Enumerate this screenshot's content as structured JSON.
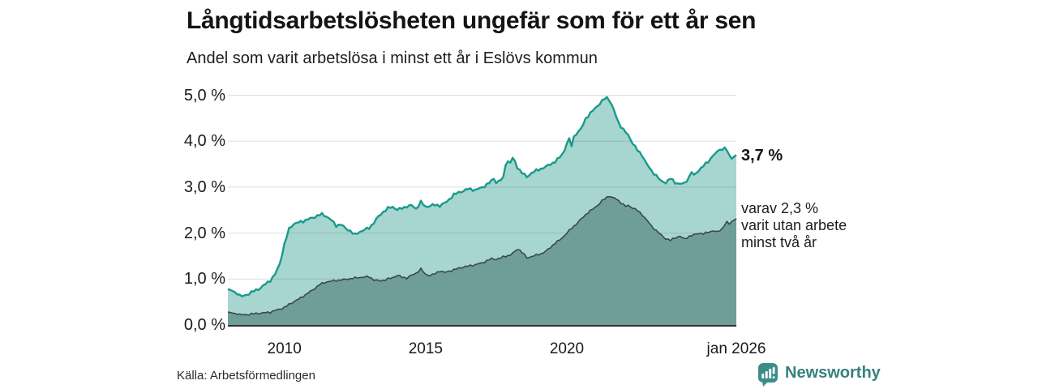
{
  "title": "Långtidsarbetslösheten ungefär som för ett år sen",
  "subtitle": "Andel som varit arbetslösa i minst ett år i Eslövs kommun",
  "source": "Källa: Arbetsförmedlingen",
  "logo": {
    "text": "Newsworthy",
    "icon": "newsworthy-speech-bubble-bar-chart-icon",
    "color": "#37817d",
    "icon_color": "#3a8d88"
  },
  "annotations": {
    "end_value_label": "3,7 %",
    "secondary": [
      "varav 2,3 %",
      "varit utan arbete",
      "minst två år"
    ]
  },
  "colors": {
    "primary_line": "#1a9a8b",
    "primary_fill": "#a7d5cf",
    "secondary_line": "#3a4948",
    "secondary_fill": "#6f9e99",
    "gridline": "rgba(70,75,85,0.18)",
    "axis": "#333333"
  },
  "chart_data": {
    "type": "area",
    "title": "Långtidsarbetslösheten ungefär som för ett år sen",
    "subtitle": "Andel som varit arbetslösa i minst ett år i Eslövs kommun",
    "xlabel": "",
    "ylabel": "",
    "x_range": [
      2008.0,
      2026.0
    ],
    "ylim": [
      0,
      5.3
    ],
    "grid": true,
    "legend_position": "right-edge-annotations",
    "y_ticks": [
      {
        "label": "0,0 %",
        "value": 0
      },
      {
        "label": "1,0 %",
        "value": 1
      },
      {
        "label": "2,0 %",
        "value": 2
      },
      {
        "label": "3,0 %",
        "value": 3
      },
      {
        "label": "4,0 %",
        "value": 4
      },
      {
        "label": "5,0 %",
        "value": 5
      }
    ],
    "x_ticks": [
      {
        "label": "2010",
        "value": 2010
      },
      {
        "label": "2015",
        "value": 2015
      },
      {
        "label": "2020",
        "value": 2020
      },
      {
        "label": "jan 2026",
        "value": 2026
      }
    ],
    "series": [
      {
        "name": "arbetslösa minst ett år",
        "end_value": 3.7,
        "end_label": "3,7 %",
        "points": [
          [
            2008.0,
            0.78
          ],
          [
            2008.17,
            0.74
          ],
          [
            2008.33,
            0.68
          ],
          [
            2008.5,
            0.62
          ],
          [
            2008.67,
            0.66
          ],
          [
            2008.83,
            0.71
          ],
          [
            2009.0,
            0.76
          ],
          [
            2009.17,
            0.81
          ],
          [
            2009.33,
            0.89
          ],
          [
            2009.5,
            0.97
          ],
          [
            2009.67,
            1.1
          ],
          [
            2009.83,
            1.32
          ],
          [
            2010.0,
            1.75
          ],
          [
            2010.17,
            2.1
          ],
          [
            2010.33,
            2.2
          ],
          [
            2010.5,
            2.23
          ],
          [
            2010.67,
            2.26
          ],
          [
            2010.83,
            2.3
          ],
          [
            2011.0,
            2.33
          ],
          [
            2011.17,
            2.38
          ],
          [
            2011.33,
            2.41
          ],
          [
            2011.5,
            2.36
          ],
          [
            2011.67,
            2.28
          ],
          [
            2011.83,
            2.16
          ],
          [
            2012.0,
            2.19
          ],
          [
            2012.17,
            2.1
          ],
          [
            2012.33,
            2.05
          ],
          [
            2012.5,
            1.96
          ],
          [
            2012.67,
            2.03
          ],
          [
            2012.83,
            2.07
          ],
          [
            2013.0,
            2.11
          ],
          [
            2013.17,
            2.23
          ],
          [
            2013.33,
            2.36
          ],
          [
            2013.5,
            2.46
          ],
          [
            2013.67,
            2.54
          ],
          [
            2013.83,
            2.57
          ],
          [
            2014.0,
            2.51
          ],
          [
            2014.17,
            2.54
          ],
          [
            2014.33,
            2.58
          ],
          [
            2014.5,
            2.6
          ],
          [
            2014.67,
            2.53
          ],
          [
            2014.83,
            2.68
          ],
          [
            2015.0,
            2.57
          ],
          [
            2015.25,
            2.61
          ],
          [
            2015.5,
            2.6
          ],
          [
            2015.75,
            2.68
          ],
          [
            2016.0,
            2.84
          ],
          [
            2016.25,
            2.9
          ],
          [
            2016.5,
            2.96
          ],
          [
            2016.75,
            2.94
          ],
          [
            2017.0,
            2.99
          ],
          [
            2017.17,
            3.06
          ],
          [
            2017.33,
            3.13
          ],
          [
            2017.42,
            3.19
          ],
          [
            2017.5,
            3.1
          ],
          [
            2017.67,
            3.16
          ],
          [
            2017.75,
            3.2
          ],
          [
            2017.83,
            3.5
          ],
          [
            2017.92,
            3.56
          ],
          [
            2018.0,
            3.54
          ],
          [
            2018.08,
            3.63
          ],
          [
            2018.17,
            3.55
          ],
          [
            2018.25,
            3.43
          ],
          [
            2018.42,
            3.31
          ],
          [
            2018.58,
            3.22
          ],
          [
            2018.75,
            3.31
          ],
          [
            2018.92,
            3.36
          ],
          [
            2019.08,
            3.4
          ],
          [
            2019.25,
            3.44
          ],
          [
            2019.42,
            3.5
          ],
          [
            2019.58,
            3.55
          ],
          [
            2019.75,
            3.65
          ],
          [
            2019.92,
            3.8
          ],
          [
            2020.0,
            3.96
          ],
          [
            2020.08,
            4.04
          ],
          [
            2020.17,
            3.9
          ],
          [
            2020.25,
            4.1
          ],
          [
            2020.33,
            4.16
          ],
          [
            2020.5,
            4.26
          ],
          [
            2020.67,
            4.5
          ],
          [
            2020.83,
            4.6
          ],
          [
            2021.0,
            4.72
          ],
          [
            2021.17,
            4.82
          ],
          [
            2021.33,
            4.92
          ],
          [
            2021.42,
            4.95
          ],
          [
            2021.5,
            4.9
          ],
          [
            2021.58,
            4.8
          ],
          [
            2021.67,
            4.66
          ],
          [
            2021.83,
            4.4
          ],
          [
            2022.0,
            4.25
          ],
          [
            2022.17,
            4.13
          ],
          [
            2022.33,
            3.96
          ],
          [
            2022.5,
            3.8
          ],
          [
            2022.67,
            3.69
          ],
          [
            2022.83,
            3.5
          ],
          [
            2023.0,
            3.35
          ],
          [
            2023.17,
            3.25
          ],
          [
            2023.33,
            3.13
          ],
          [
            2023.5,
            3.1
          ],
          [
            2023.67,
            3.19
          ],
          [
            2023.83,
            3.1
          ],
          [
            2024.0,
            3.07
          ],
          [
            2024.17,
            3.08
          ],
          [
            2024.33,
            3.22
          ],
          [
            2024.42,
            3.34
          ],
          [
            2024.5,
            3.25
          ],
          [
            2024.67,
            3.37
          ],
          [
            2024.83,
            3.46
          ],
          [
            2025.0,
            3.55
          ],
          [
            2025.17,
            3.69
          ],
          [
            2025.33,
            3.76
          ],
          [
            2025.42,
            3.84
          ],
          [
            2025.5,
            3.8
          ],
          [
            2025.58,
            3.88
          ],
          [
            2025.67,
            3.78
          ],
          [
            2025.83,
            3.62
          ],
          [
            2025.92,
            3.66
          ],
          [
            2026.0,
            3.7
          ]
        ]
      },
      {
        "name": "varav utan arbete minst två år",
        "end_value": 2.3,
        "end_label": "varav 2,3 % varit utan arbete minst två år",
        "points": [
          [
            2008.0,
            0.28
          ],
          [
            2008.25,
            0.25
          ],
          [
            2008.5,
            0.22
          ],
          [
            2008.75,
            0.23
          ],
          [
            2009.0,
            0.25
          ],
          [
            2009.25,
            0.26
          ],
          [
            2009.5,
            0.28
          ],
          [
            2009.75,
            0.33
          ],
          [
            2010.0,
            0.38
          ],
          [
            2010.25,
            0.48
          ],
          [
            2010.5,
            0.56
          ],
          [
            2010.75,
            0.66
          ],
          [
            2011.0,
            0.76
          ],
          [
            2011.25,
            0.88
          ],
          [
            2011.5,
            0.94
          ],
          [
            2011.75,
            0.96
          ],
          [
            2012.0,
            0.98
          ],
          [
            2012.25,
            1.0
          ],
          [
            2012.5,
            1.02
          ],
          [
            2012.75,
            1.04
          ],
          [
            2013.0,
            1.05
          ],
          [
            2013.17,
            0.98
          ],
          [
            2013.33,
            0.96
          ],
          [
            2013.5,
            0.97
          ],
          [
            2013.67,
            1.0
          ],
          [
            2013.83,
            1.03
          ],
          [
            2014.0,
            1.08
          ],
          [
            2014.17,
            1.04
          ],
          [
            2014.33,
            1.02
          ],
          [
            2014.5,
            1.08
          ],
          [
            2014.67,
            1.13
          ],
          [
            2014.83,
            1.22
          ],
          [
            2015.0,
            1.1
          ],
          [
            2015.17,
            1.08
          ],
          [
            2015.33,
            1.11
          ],
          [
            2015.5,
            1.18
          ],
          [
            2015.67,
            1.14
          ],
          [
            2015.83,
            1.17
          ],
          [
            2016.0,
            1.2
          ],
          [
            2016.25,
            1.25
          ],
          [
            2016.5,
            1.28
          ],
          [
            2016.75,
            1.31
          ],
          [
            2017.0,
            1.35
          ],
          [
            2017.17,
            1.4
          ],
          [
            2017.33,
            1.44
          ],
          [
            2017.5,
            1.43
          ],
          [
            2017.67,
            1.46
          ],
          [
            2017.83,
            1.5
          ],
          [
            2018.0,
            1.52
          ],
          [
            2018.17,
            1.6
          ],
          [
            2018.25,
            1.66
          ],
          [
            2018.33,
            1.63
          ],
          [
            2018.42,
            1.58
          ],
          [
            2018.58,
            1.46
          ],
          [
            2018.75,
            1.49
          ],
          [
            2018.92,
            1.52
          ],
          [
            2019.08,
            1.55
          ],
          [
            2019.25,
            1.6
          ],
          [
            2019.42,
            1.69
          ],
          [
            2019.58,
            1.78
          ],
          [
            2019.75,
            1.85
          ],
          [
            2019.92,
            1.95
          ],
          [
            2020.08,
            2.05
          ],
          [
            2020.25,
            2.15
          ],
          [
            2020.42,
            2.25
          ],
          [
            2020.58,
            2.35
          ],
          [
            2020.75,
            2.45
          ],
          [
            2020.92,
            2.52
          ],
          [
            2021.08,
            2.6
          ],
          [
            2021.25,
            2.7
          ],
          [
            2021.42,
            2.78
          ],
          [
            2021.5,
            2.81
          ],
          [
            2021.58,
            2.78
          ],
          [
            2021.75,
            2.74
          ],
          [
            2021.92,
            2.66
          ],
          [
            2022.08,
            2.58
          ],
          [
            2022.17,
            2.6
          ],
          [
            2022.33,
            2.55
          ],
          [
            2022.5,
            2.49
          ],
          [
            2022.67,
            2.4
          ],
          [
            2022.83,
            2.28
          ],
          [
            2023.0,
            2.15
          ],
          [
            2023.17,
            2.05
          ],
          [
            2023.33,
            1.96
          ],
          [
            2023.5,
            1.88
          ],
          [
            2023.67,
            1.84
          ],
          [
            2023.83,
            1.9
          ],
          [
            2024.0,
            1.93
          ],
          [
            2024.17,
            1.87
          ],
          [
            2024.33,
            1.93
          ],
          [
            2024.5,
            1.96
          ],
          [
            2024.67,
            2.0
          ],
          [
            2024.83,
            1.98
          ],
          [
            2025.0,
            2.02
          ],
          [
            2025.17,
            2.05
          ],
          [
            2025.33,
            2.02
          ],
          [
            2025.5,
            2.1
          ],
          [
            2025.67,
            2.25
          ],
          [
            2025.75,
            2.19
          ],
          [
            2025.83,
            2.25
          ],
          [
            2026.0,
            2.31
          ]
        ]
      }
    ]
  }
}
